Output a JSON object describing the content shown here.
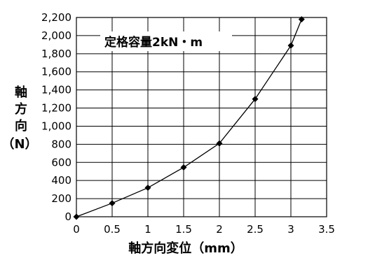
{
  "chart_data": {
    "type": "line",
    "title": "",
    "annotation": "定格容量2kN・m",
    "xlabel": "軸方向変位（mm）",
    "ylabel_lines": [
      "軸",
      "方",
      "向",
      "（N）"
    ],
    "xlim": [
      0,
      3.5
    ],
    "ylim": [
      0,
      2200
    ],
    "x_ticks": [
      "0",
      "0.5",
      "1",
      "1.5",
      "2",
      "2.5",
      "3",
      "3.5"
    ],
    "y_ticks": [
      "0",
      "200",
      "400",
      "600",
      "800",
      "1,000",
      "1,200",
      "1,400",
      "1,600",
      "1,800",
      "2,000",
      "2,200"
    ],
    "grid": true,
    "legend": "none",
    "series": [
      {
        "x": [
          0,
          0.5,
          1,
          1.5,
          2,
          2.5,
          3,
          3.15
        ],
        "y": [
          0,
          150,
          320,
          545,
          810,
          1300,
          1890,
          2180
        ]
      }
    ],
    "line_color": "#000000",
    "marker": "diamond"
  }
}
